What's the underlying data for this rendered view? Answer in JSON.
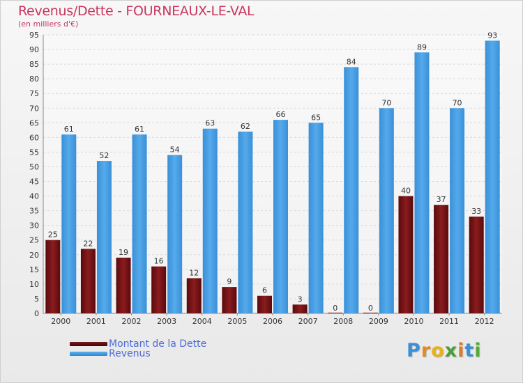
{
  "header": {
    "title": "Revenus/Dette - FOURNEAUX-LE-VAL",
    "subtitle": "(en milliers d'€)"
  },
  "chart_data": {
    "type": "bar",
    "categories": [
      "2000",
      "2001",
      "2002",
      "2003",
      "2004",
      "2005",
      "2006",
      "2007",
      "2008",
      "2009",
      "2010",
      "2011",
      "2012"
    ],
    "series": [
      {
        "name": "Montant de la Dette",
        "values": [
          25,
          22,
          19,
          16,
          12,
          9,
          6,
          3,
          0,
          0,
          40,
          37,
          33
        ],
        "color": "#7a0f12"
      },
      {
        "name": "Revenus",
        "values": [
          61,
          52,
          61,
          54,
          63,
          62,
          66,
          65,
          84,
          70,
          89,
          70,
          93
        ],
        "color": "#3f97dd"
      }
    ],
    "ylim": [
      0,
      95
    ],
    "yticks": [
      0,
      5,
      10,
      15,
      20,
      25,
      30,
      35,
      40,
      45,
      50,
      55,
      60,
      65,
      70,
      75,
      80,
      85,
      90,
      95
    ],
    "grid": true,
    "data_labels": true,
    "legend_position": "bottom-left"
  },
  "legend": {
    "items": [
      {
        "label": "Montant de la Dette",
        "color": "#5e0a0c"
      },
      {
        "label": "Revenus",
        "color": "#3f97dd"
      }
    ]
  },
  "logo": {
    "letters": [
      "P",
      "r",
      "o",
      "x",
      "i",
      "t",
      "i"
    ],
    "colors": [
      "#3a8fd6",
      "#e48a1f",
      "#e8b21a",
      "#4a9e3a",
      "#e27a1f",
      "#3a8fd6",
      "#56a83a"
    ]
  }
}
